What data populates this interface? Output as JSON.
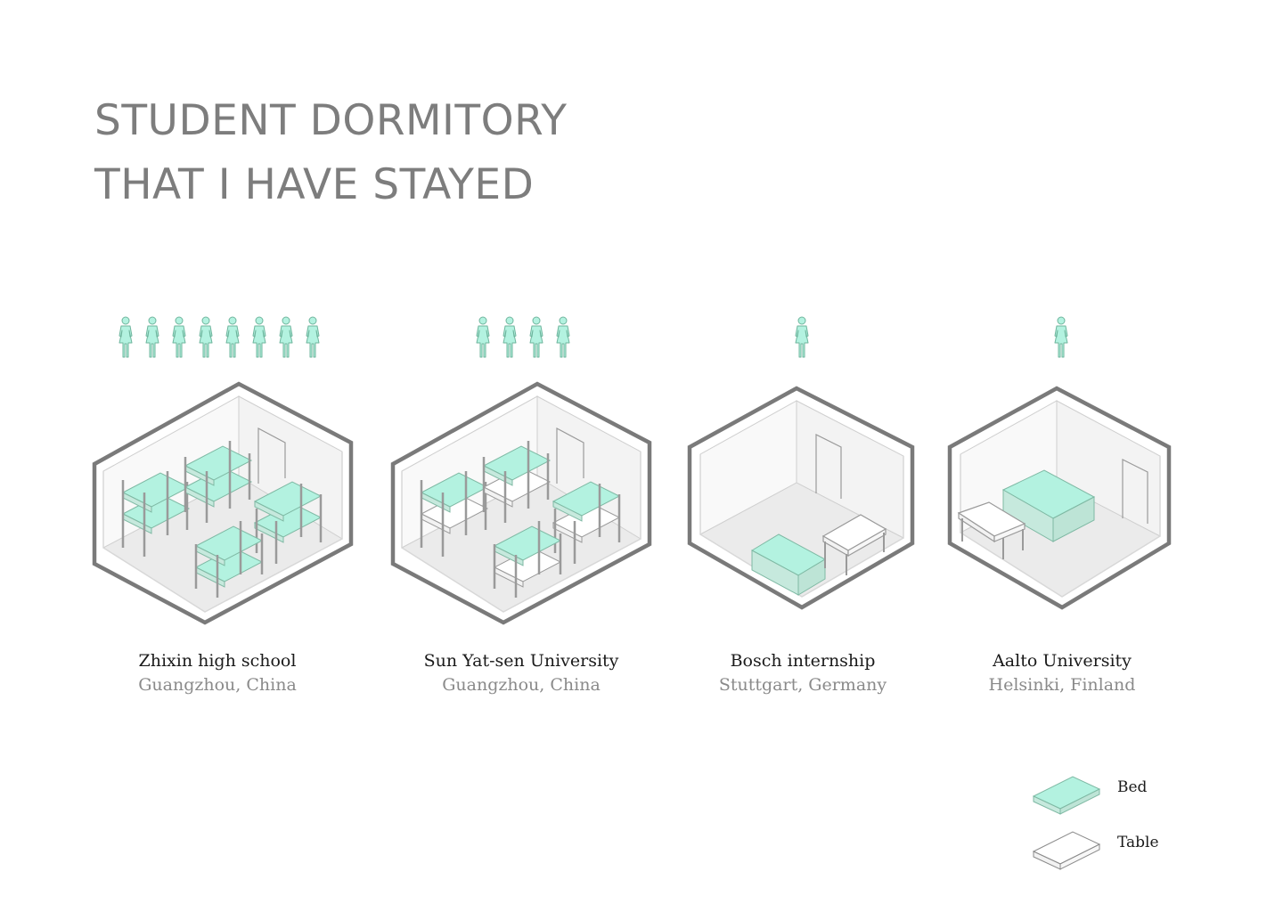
{
  "title": {
    "line1": "STUDENT DORMITORY",
    "line2": "THAT I HAVE STAYED"
  },
  "colors": {
    "bed": "#b3f2e0",
    "bed_side": "#c6e9dd",
    "outline": "#7a7a7a",
    "floor": "#ebebeb",
    "wall": "#f7f7f7"
  },
  "icons": {
    "person": "person-icon",
    "bed": "bed-icon",
    "table": "table-icon"
  },
  "dorms": [
    {
      "name": "Zhixin high school",
      "location": "Guangzhou, China",
      "residents": 8
    },
    {
      "name": "Sun Yat-sen University",
      "location": "Guangzhou, China",
      "residents": 4
    },
    {
      "name": "Bosch internship",
      "location": "Stuttgart, Germany",
      "residents": 1
    },
    {
      "name": "Aalto University",
      "location": "Helsinki, Finland",
      "residents": 1
    }
  ],
  "legend": {
    "bed": "Bed",
    "table": "Table"
  }
}
